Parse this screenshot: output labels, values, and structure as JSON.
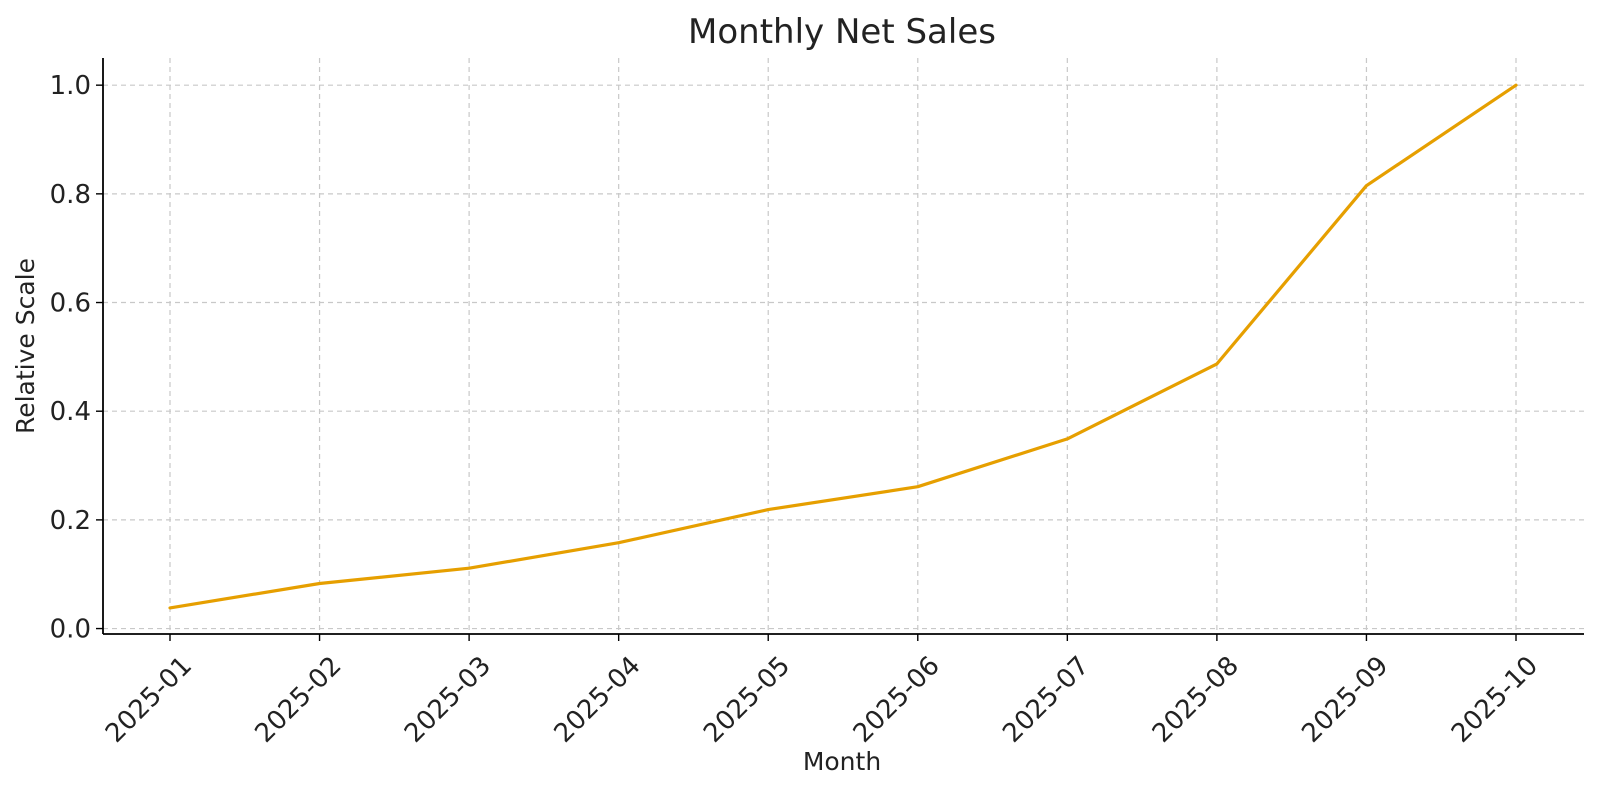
{
  "chart_data": {
    "type": "line",
    "title": "Monthly Net Sales",
    "xlabel": "Month",
    "ylabel": "Relative Scale",
    "categories": [
      "2025-01",
      "2025-02",
      "2025-03",
      "2025-04",
      "2025-05",
      "2025-06",
      "2025-07",
      "2025-08",
      "2025-09",
      "2025-10"
    ],
    "series": [
      {
        "values": [
          0.038,
          0.083,
          0.111,
          0.158,
          0.219,
          0.261,
          0.349,
          0.487,
          0.815,
          1.0
        ],
        "color": "#E69F00"
      }
    ],
    "ylim": [
      -0.01,
      1.05
    ],
    "yticks": [
      0.0,
      0.2,
      0.4,
      0.6,
      0.8,
      1.0
    ],
    "ytick_labels": [
      "0.0",
      "0.2",
      "0.4",
      "0.6",
      "0.8",
      "1.0"
    ],
    "grid": true,
    "grid_style": "dashed",
    "grid_color": "#c8c8c8",
    "x_tick_rotation": 45
  }
}
